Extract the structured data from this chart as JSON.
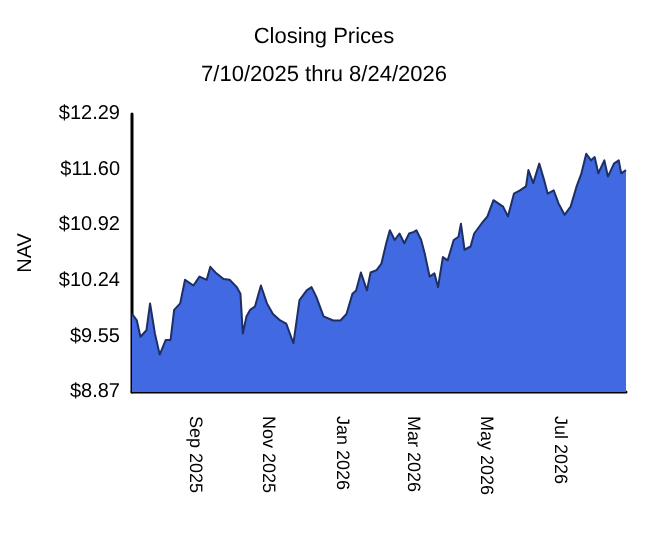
{
  "chart_data": {
    "type": "area",
    "title": "Closing Prices",
    "subtitle": "7/10/2025 thru 8/24/2026",
    "ylabel": "NAV",
    "x": [
      "2025-07-10",
      "2025-07-14",
      "2025-07-17",
      "2025-07-22",
      "2025-07-25",
      "2025-07-29",
      "2025-08-02",
      "2025-08-07",
      "2025-08-11",
      "2025-08-14",
      "2025-08-19",
      "2025-08-23",
      "2025-08-30",
      "2025-09-04",
      "2025-09-10",
      "2025-09-13",
      "2025-09-18",
      "2025-09-24",
      "2025-09-29",
      "2025-10-05",
      "2025-10-08",
      "2025-10-10",
      "2025-10-13",
      "2025-10-16",
      "2025-10-20",
      "2025-10-25",
      "2025-10-30",
      "2025-11-04",
      "2025-11-10",
      "2025-11-15",
      "2025-11-21",
      "2025-11-26",
      "2025-12-02",
      "2025-12-06",
      "2025-12-10",
      "2025-12-16",
      "2025-12-24",
      "2025-12-30",
      "2026-01-04",
      "2026-01-09",
      "2026-01-12",
      "2026-01-16",
      "2026-01-21",
      "2026-01-24",
      "2026-01-29",
      "2026-02-02",
      "2026-02-06",
      "2026-02-09",
      "2026-02-13",
      "2026-02-17",
      "2026-02-21",
      "2026-02-25",
      "2026-03-01",
      "2026-03-03",
      "2026-03-07",
      "2026-03-10",
      "2026-03-14",
      "2026-03-18",
      "2026-03-21",
      "2026-03-25",
      "2026-03-29",
      "2026-04-03",
      "2026-04-07",
      "2026-04-09",
      "2026-04-12",
      "2026-04-17",
      "2026-04-20",
      "2026-04-26",
      "2026-05-01",
      "2026-05-06",
      "2026-05-10",
      "2026-05-14",
      "2026-05-18",
      "2026-05-23",
      "2026-05-28",
      "2026-06-02",
      "2026-06-04",
      "2026-06-08",
      "2026-06-13",
      "2026-06-17",
      "2026-06-20",
      "2026-06-25",
      "2026-06-29",
      "2026-07-04",
      "2026-07-09",
      "2026-07-14",
      "2026-07-18",
      "2026-07-22",
      "2026-07-26",
      "2026-07-29",
      "2026-08-01",
      "2026-08-06",
      "2026-08-09",
      "2026-08-14",
      "2026-08-18",
      "2026-08-20",
      "2026-08-24"
    ],
    "series": [
      {
        "color": "#4169e1",
        "values": [
          9.83,
          9.75,
          9.55,
          9.63,
          9.96,
          9.59,
          9.33,
          9.51,
          9.51,
          9.88,
          9.96,
          10.25,
          10.18,
          10.29,
          10.25,
          10.41,
          10.33,
          10.26,
          10.25,
          10.16,
          10.08,
          9.59,
          9.8,
          9.88,
          9.92,
          10.18,
          9.96,
          9.83,
          9.75,
          9.71,
          9.47,
          10.0,
          10.12,
          10.16,
          10.04,
          9.8,
          9.75,
          9.75,
          9.83,
          10.08,
          10.12,
          10.34,
          10.12,
          10.34,
          10.37,
          10.45,
          10.7,
          10.86,
          10.74,
          10.82,
          10.7,
          10.82,
          10.84,
          10.86,
          10.74,
          10.57,
          10.29,
          10.33,
          10.16,
          10.53,
          10.49,
          10.74,
          10.78,
          10.94,
          10.62,
          10.66,
          10.82,
          10.94,
          11.03,
          11.23,
          11.19,
          11.15,
          11.03,
          11.31,
          11.35,
          11.4,
          11.6,
          11.44,
          11.68,
          11.48,
          11.31,
          11.35,
          11.19,
          11.05,
          11.15,
          11.4,
          11.56,
          11.8,
          11.72,
          11.76,
          11.56,
          11.72,
          11.52,
          11.68,
          11.72,
          11.56,
          11.6
        ]
      }
    ],
    "xlim": [
      "2025-07-10",
      "2026-08-24"
    ],
    "xticks": [
      {
        "value": "2025-09-01",
        "label": "Sep 2025"
      },
      {
        "value": "2025-11-01",
        "label": "Nov 2025"
      },
      {
        "value": "2026-01-01",
        "label": "Jan 2026"
      },
      {
        "value": "2026-03-01",
        "label": "Mar 2026"
      },
      {
        "value": "2026-05-01",
        "label": "May 2026"
      },
      {
        "value": "2026-07-01",
        "label": "Jul 2026"
      }
    ],
    "ylim": [
      8.87,
      12.29
    ],
    "yticks": [
      {
        "value": 8.87,
        "label": "$8.87"
      },
      {
        "value": 9.55,
        "label": "$9.55"
      },
      {
        "value": 10.24,
        "label": "$10.24"
      },
      {
        "value": 10.92,
        "label": "$10.92"
      },
      {
        "value": 11.6,
        "label": "$11.60"
      },
      {
        "value": 12.29,
        "label": "$12.29"
      }
    ],
    "grid": false
  }
}
